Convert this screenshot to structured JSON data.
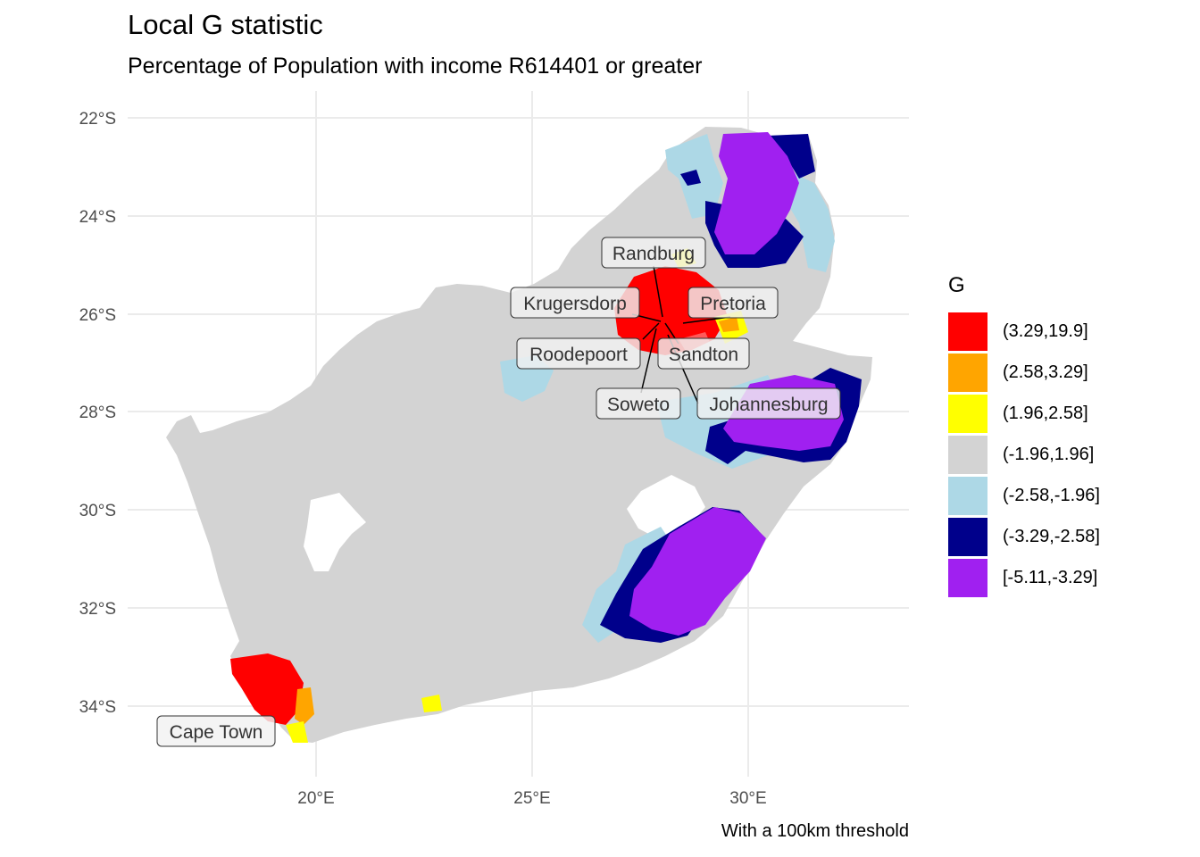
{
  "title": "Local G statistic",
  "subtitle": "Percentage of Population with income R614401 or greater",
  "caption": "With a 100km threshold",
  "axes": {
    "x_ticks": [
      "20°E",
      "25°E",
      "30°E"
    ],
    "y_ticks": [
      "22°S",
      "24°S",
      "26°S",
      "28°S",
      "30°S",
      "32°S",
      "34°S"
    ]
  },
  "legend": {
    "title": "G",
    "items": [
      {
        "label": "(3.29,19.9]",
        "color": "#ff0000"
      },
      {
        "label": "(2.58,3.29]",
        "color": "#ffa500"
      },
      {
        "label": "(1.96,2.58]",
        "color": "#ffff00"
      },
      {
        "label": "(-1.96,1.96]",
        "color": "#d3d3d3"
      },
      {
        "label": "(-2.58,-1.96]",
        "color": "#add8e6"
      },
      {
        "label": "(-3.29,-2.58]",
        "color": "#00008b"
      },
      {
        "label": "[-5.11,-3.29]",
        "color": "#a020f0"
      }
    ]
  },
  "cities": {
    "randburg": "Randburg",
    "krugersdorp": "Krugersdorp",
    "pretoria": "Pretoria",
    "roodepoort": "Roodepoort",
    "sandton": "Sandton",
    "soweto": "Soweto",
    "johannesburg": "Johannesburg",
    "cape_town": "Cape Town"
  }
}
